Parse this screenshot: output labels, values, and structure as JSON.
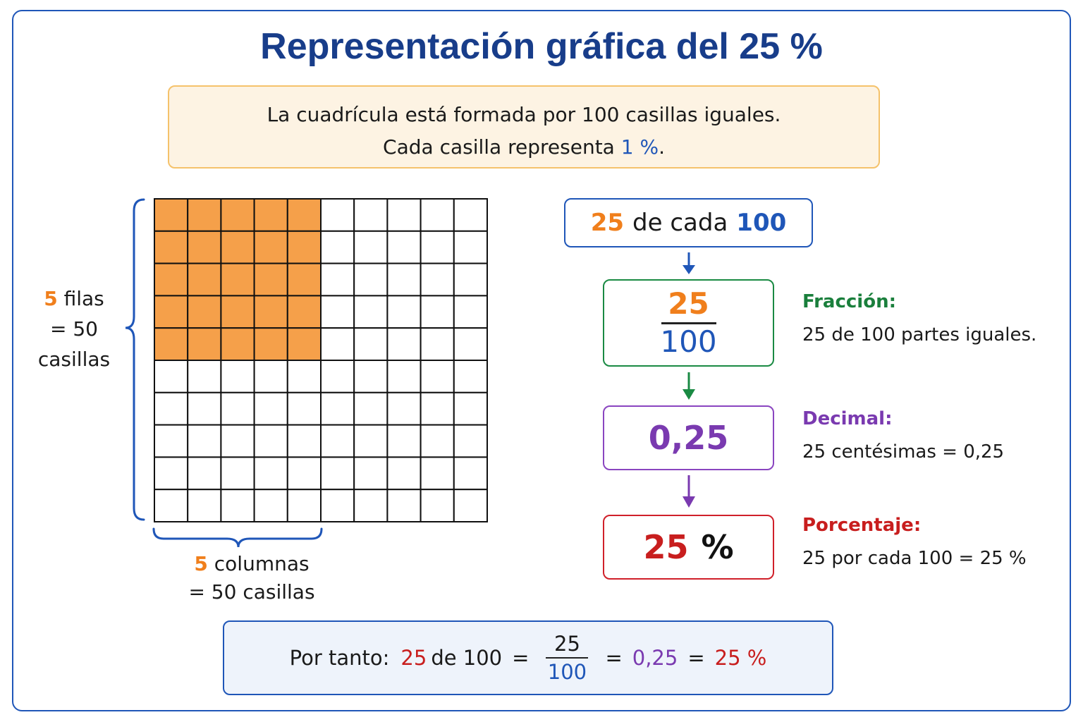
{
  "title": "Representación gráfica del 25 %",
  "intro": {
    "line1": "La cuadrícula está formada por 100 casillas iguales.",
    "line2_pre": "Cada casilla representa ",
    "line2_value": "1 %",
    "line2_post": "."
  },
  "grid": {
    "rows": 10,
    "cols": 10,
    "shaded_rows": 5,
    "shaded_cols": 5,
    "shade_color": "#F5A04A",
    "line_color": "#111111"
  },
  "rows_label": {
    "number": "5",
    "word": "filas",
    "line2": "= 50",
    "line3": "casillas"
  },
  "cols_label": {
    "number": "5",
    "word": "columnas",
    "line2": "= 50 casillas"
  },
  "flow": {
    "box1": {
      "a": "25",
      "mid": "de cada",
      "b": "100"
    },
    "fraction": {
      "num": "25",
      "den": "100"
    },
    "decimal": "0,25",
    "percent": {
      "num": "25",
      "sign": "%"
    }
  },
  "explanations": {
    "fraction": {
      "head": "Fracción:",
      "text": "25 de 100 partes iguales."
    },
    "decimal": {
      "head": "Decimal:",
      "text": "25 centésimas = 0,25"
    },
    "percent": {
      "head": "Porcentaje:",
      "text": "25 por cada 100 = 25 %"
    }
  },
  "summary": {
    "label": "Por tanto:",
    "a": "25",
    "mid": "de 100",
    "eq": "=",
    "frac_num": "25",
    "frac_den": "100",
    "decimal": "0,25",
    "percent": "25 %"
  },
  "colors": {
    "title": "#183D8A",
    "orange": "#F07F1C",
    "blue": "#1F56B8",
    "green": "#1A8A43",
    "purple": "#8A45C0",
    "red": "#D0202A"
  }
}
